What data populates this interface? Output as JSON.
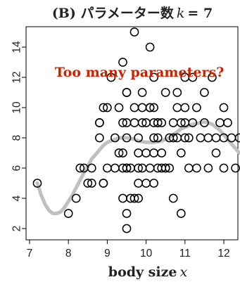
{
  "title": "(B) パラメーター数 k = 7",
  "title_parts": {
    "prefix": "(B) パラメーター数",
    "var": "k",
    "equals": "= 7"
  },
  "chart_data": {
    "type": "scatter",
    "xlabel": "body size x",
    "xlabel_parts": {
      "text": "body size",
      "var": "x"
    },
    "ylabel": "",
    "xlim": [
      7,
      12.5
    ],
    "ylim": [
      1.7,
      15.3
    ],
    "xticks": [
      7,
      8,
      9,
      10,
      11,
      12
    ],
    "yticks": [
      2,
      4,
      6,
      8,
      10,
      12,
      14
    ],
    "grid": false,
    "annotation": "Too many parameters?",
    "annotation_color": "#cc2200",
    "marker_color": "#000000",
    "curve_color": "#c0c0c0",
    "points": [
      [
        7.2,
        5
      ],
      [
        8.0,
        3
      ],
      [
        8.2,
        4
      ],
      [
        8.3,
        6
      ],
      [
        8.4,
        6
      ],
      [
        8.5,
        5
      ],
      [
        8.6,
        5
      ],
      [
        8.6,
        6
      ],
      [
        8.8,
        8
      ],
      [
        8.8,
        9
      ],
      [
        8.8,
        9
      ],
      [
        8.9,
        5
      ],
      [
        8.9,
        5
      ],
      [
        8.9,
        10
      ],
      [
        9.0,
        6
      ],
      [
        9.0,
        10
      ],
      [
        9.1,
        12
      ],
      [
        9.2,
        8
      ],
      [
        9.2,
        6
      ],
      [
        9.3,
        7
      ],
      [
        9.3,
        10
      ],
      [
        9.4,
        6
      ],
      [
        9.4,
        9
      ],
      [
        9.4,
        13
      ],
      [
        9.4,
        7
      ],
      [
        9.4,
        4
      ],
      [
        9.5,
        6
      ],
      [
        9.5,
        6
      ],
      [
        9.5,
        8
      ],
      [
        9.5,
        9
      ],
      [
        9.5,
        11
      ],
      [
        9.5,
        11
      ],
      [
        9.5,
        2
      ],
      [
        9.5,
        3
      ],
      [
        9.6,
        6
      ],
      [
        9.6,
        4
      ],
      [
        9.7,
        4
      ],
      [
        9.7,
        9
      ],
      [
        9.7,
        10
      ],
      [
        9.7,
        15
      ],
      [
        9.8,
        8
      ],
      [
        9.8,
        5
      ],
      [
        9.8,
        6
      ],
      [
        9.8,
        7
      ],
      [
        9.8,
        4
      ],
      [
        9.9,
        6
      ],
      [
        9.9,
        9
      ],
      [
        9.9,
        10
      ],
      [
        9.9,
        11
      ],
      [
        10.0,
        5
      ],
      [
        10.0,
        7
      ],
      [
        10.0,
        9
      ],
      [
        10.1,
        6
      ],
      [
        10.1,
        10
      ],
      [
        10.1,
        10
      ],
      [
        10.1,
        14
      ],
      [
        10.2,
        5
      ],
      [
        10.2,
        7
      ],
      [
        10.2,
        8
      ],
      [
        10.2,
        9
      ],
      [
        10.2,
        10
      ],
      [
        10.2,
        12
      ],
      [
        10.3,
        6
      ],
      [
        10.3,
        8
      ],
      [
        10.3,
        9
      ],
      [
        10.3,
        9
      ],
      [
        10.4,
        6
      ],
      [
        10.4,
        7
      ],
      [
        10.4,
        9
      ],
      [
        10.5,
        6
      ],
      [
        10.5,
        6
      ],
      [
        10.5,
        11
      ],
      [
        10.6,
        6
      ],
      [
        10.6,
        8
      ],
      [
        10.7,
        9
      ],
      [
        10.7,
        4
      ],
      [
        10.7,
        8
      ],
      [
        10.8,
        11
      ],
      [
        10.8,
        8
      ],
      [
        10.8,
        10
      ],
      [
        10.9,
        3
      ],
      [
        10.9,
        7
      ],
      [
        10.9,
        9
      ],
      [
        11.0,
        8
      ],
      [
        11.0,
        12
      ],
      [
        11.0,
        10
      ],
      [
        11.0,
        9
      ],
      [
        11.1,
        6
      ],
      [
        11.1,
        8
      ],
      [
        11.2,
        12
      ],
      [
        11.2,
        9
      ],
      [
        11.3,
        10
      ],
      [
        11.3,
        6
      ],
      [
        11.4,
        8
      ],
      [
        11.5,
        9
      ],
      [
        11.5,
        11
      ],
      [
        11.6,
        6
      ],
      [
        11.6,
        8
      ],
      [
        11.7,
        12
      ],
      [
        11.8,
        7
      ],
      [
        11.8,
        8
      ],
      [
        11.9,
        9
      ],
      [
        12.0,
        6
      ],
      [
        12.0,
        8
      ],
      [
        12.0,
        10
      ],
      [
        12.1,
        9
      ],
      [
        12.2,
        8
      ],
      [
        12.3,
        6
      ],
      [
        12.4,
        8
      ]
    ],
    "curve": [
      [
        7.2,
        5.0
      ],
      [
        7.3,
        4.2
      ],
      [
        7.4,
        3.6
      ],
      [
        7.5,
        3.2
      ],
      [
        7.6,
        3.0
      ],
      [
        7.7,
        3.0
      ],
      [
        7.8,
        3.1
      ],
      [
        7.9,
        3.4
      ],
      [
        8.0,
        3.8
      ],
      [
        8.1,
        4.2
      ],
      [
        8.2,
        4.7
      ],
      [
        8.3,
        5.2
      ],
      [
        8.4,
        5.7
      ],
      [
        8.5,
        6.1
      ],
      [
        8.6,
        6.6
      ],
      [
        8.7,
        6.9
      ],
      [
        8.8,
        7.2
      ],
      [
        8.9,
        7.5
      ],
      [
        9.0,
        7.7
      ],
      [
        9.1,
        7.8
      ],
      [
        9.2,
        7.9
      ],
      [
        9.3,
        8.0
      ],
      [
        9.4,
        8.0
      ],
      [
        9.5,
        8.0
      ],
      [
        9.6,
        7.95
      ],
      [
        9.7,
        7.9
      ],
      [
        9.8,
        7.8
      ],
      [
        9.9,
        7.75
      ],
      [
        10.0,
        7.7
      ],
      [
        10.1,
        7.7
      ],
      [
        10.2,
        7.7
      ],
      [
        10.3,
        7.75
      ],
      [
        10.4,
        7.8
      ],
      [
        10.5,
        7.9
      ],
      [
        10.6,
        8.0
      ],
      [
        10.7,
        8.2
      ],
      [
        10.8,
        8.4
      ],
      [
        10.9,
        8.6
      ],
      [
        11.0,
        8.7
      ],
      [
        11.1,
        8.8
      ],
      [
        11.2,
        8.9
      ],
      [
        11.3,
        8.95
      ],
      [
        11.4,
        9.0
      ],
      [
        11.5,
        9.05
      ],
      [
        11.6,
        9.0
      ],
      [
        11.7,
        8.9
      ],
      [
        11.8,
        8.7
      ],
      [
        11.9,
        8.5
      ],
      [
        12.0,
        8.2
      ],
      [
        12.1,
        7.9
      ],
      [
        12.2,
        7.6
      ],
      [
        12.3,
        7.3
      ],
      [
        12.4,
        7.0
      ]
    ]
  }
}
